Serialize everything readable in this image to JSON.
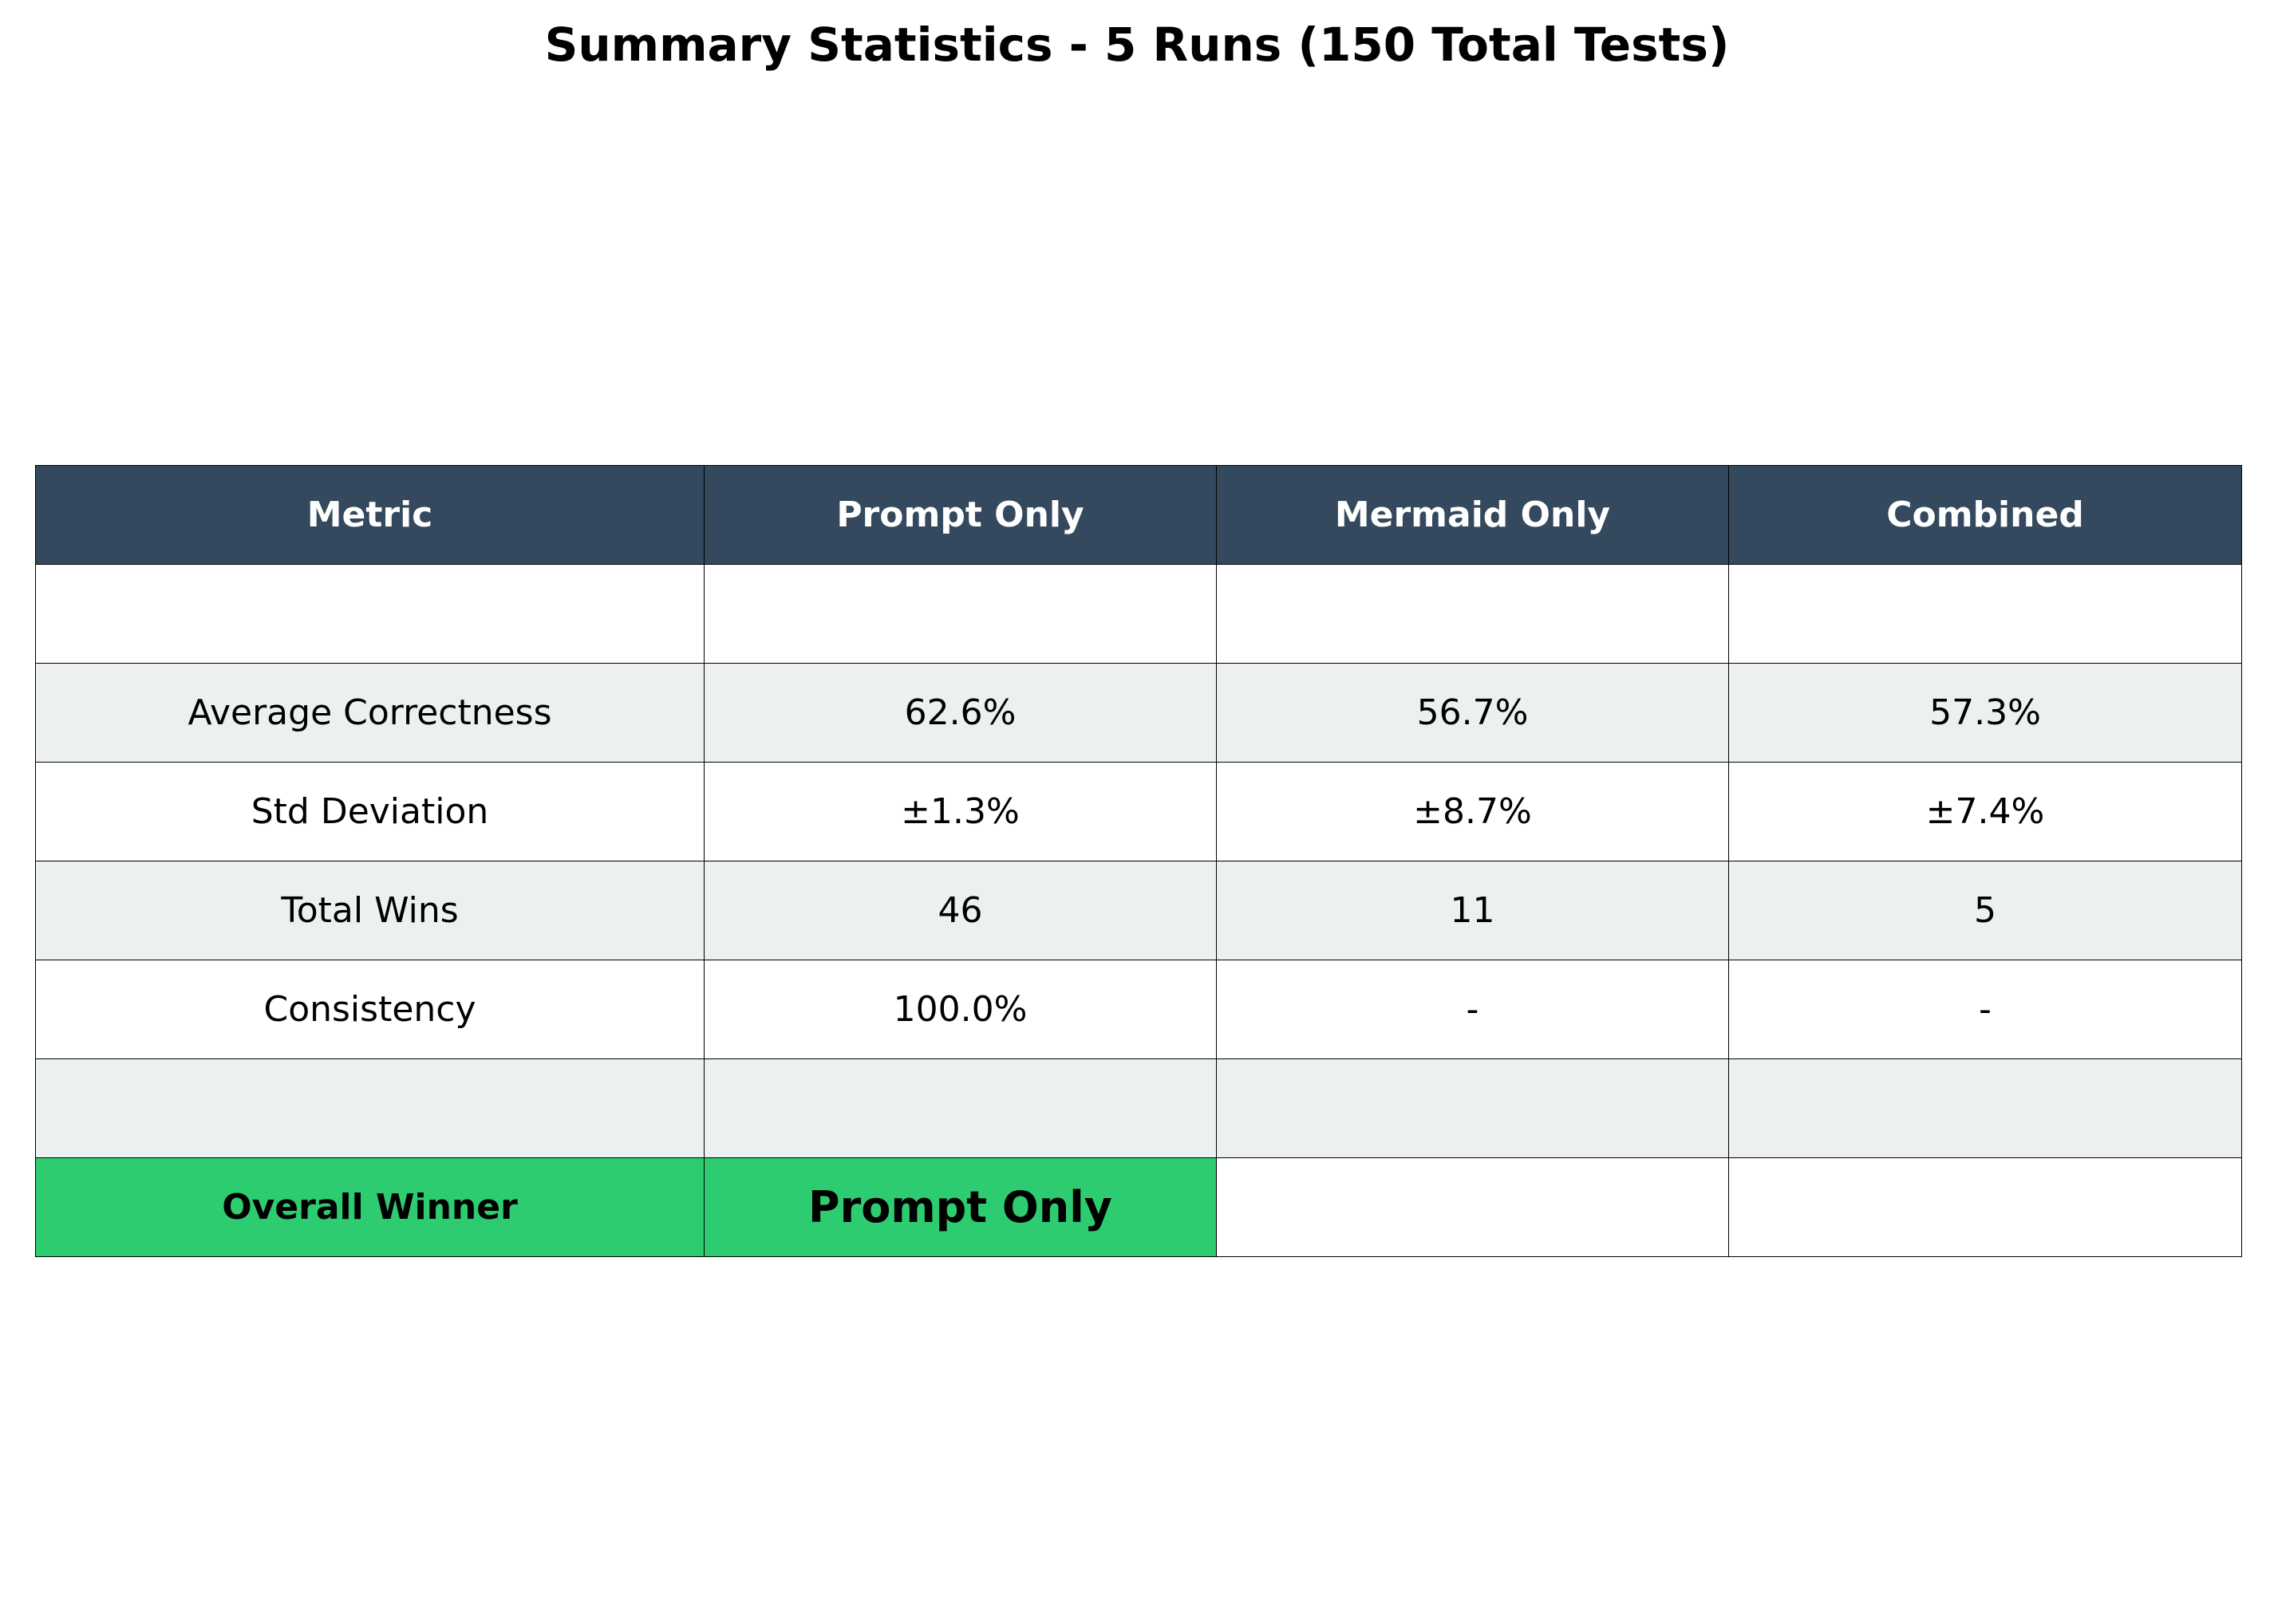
{
  "chart_data": {
    "type": "table",
    "title": "Summary Statistics - 5 Runs (150 Total Tests)",
    "columns": [
      "Metric",
      "Prompt Only",
      "Mermaid Only",
      "Combined"
    ],
    "rows": [
      [
        "",
        "",
        "",
        ""
      ],
      [
        "Average Correctness",
        "62.6%",
        "56.7%",
        "57.3%"
      ],
      [
        "Std Deviation",
        "±1.3%",
        "±8.7%",
        "±7.4%"
      ],
      [
        "Total Wins",
        "46",
        "11",
        "5"
      ],
      [
        "Consistency",
        "100.0%",
        "-",
        "-"
      ],
      [
        "",
        "",
        "",
        ""
      ],
      [
        "Overall Winner",
        "Prompt Only",
        "",
        ""
      ]
    ]
  },
  "colors": {
    "header_bg": "#34495e",
    "header_text": "#ffffff",
    "row_alt_bg": "#ecf0f1",
    "row_bg": "#ffffff",
    "winner_bg": "#2ecc71",
    "border": "#000000"
  }
}
